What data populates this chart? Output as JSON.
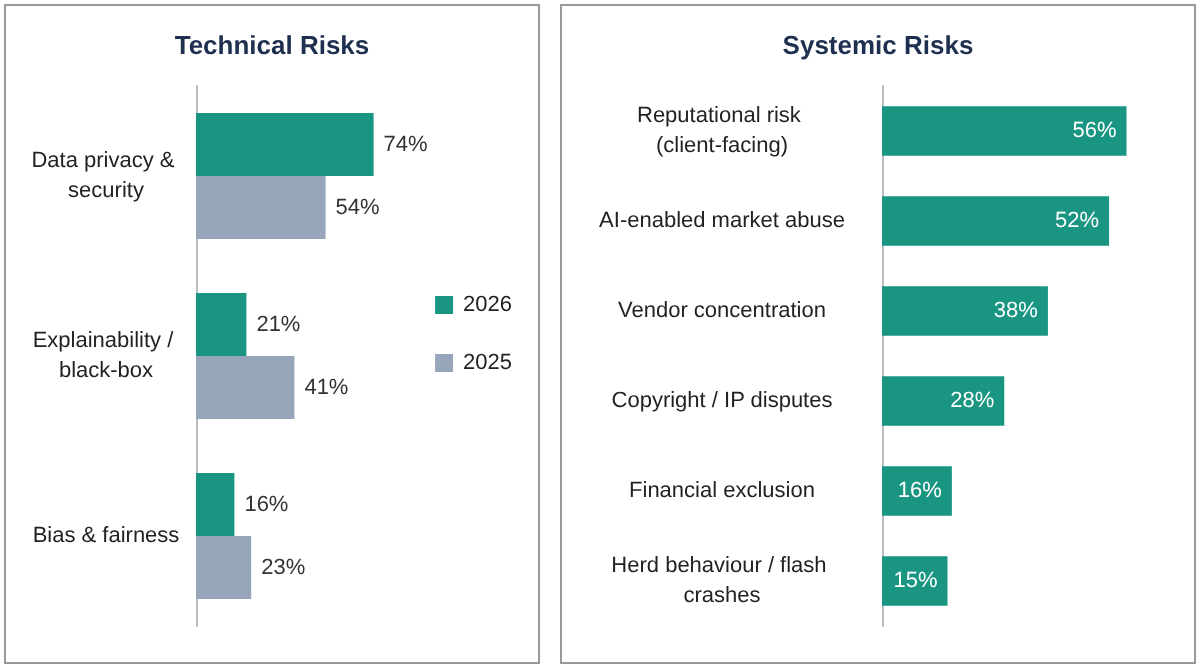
{
  "chart_data": [
    {
      "type": "bar",
      "title": "Technical Risks",
      "orientation": "horizontal",
      "categories": [
        "Data privacy & security",
        "Explainability / black-box",
        "Bias & fairness"
      ],
      "series": [
        {
          "name": "2026",
          "color": "#1a9582",
          "values": [
            74,
            21,
            16
          ],
          "value_labels": [
            "74%",
            "21%",
            "16%"
          ]
        },
        {
          "name": "2025",
          "color": "#98a6bc",
          "values": [
            54,
            41,
            23
          ],
          "value_labels": [
            "54%",
            "41%",
            "23%"
          ]
        }
      ],
      "legend": "right"
    },
    {
      "type": "bar",
      "title": "Systemic Risks",
      "orientation": "horizontal",
      "categories": [
        "Reputational risk (client-facing)",
        "AI-enabled market abuse",
        "Vendor concentration",
        "Copyright / IP disputes",
        "Financial exclusion",
        "Herd behaviour / flash crashes"
      ],
      "color": "#1a9582",
      "values": [
        56,
        52,
        38,
        28,
        16,
        15
      ],
      "value_labels": [
        "56%",
        "52%",
        "38%",
        "28%",
        "16%",
        "15%"
      ]
    }
  ]
}
